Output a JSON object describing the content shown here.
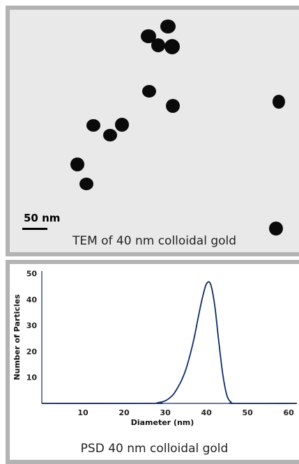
{
  "tem_panel": {
    "caption": "TEM of 40 nm colloidal gold",
    "scale_bar_label": "50 nm"
  },
  "psd_panel": {
    "caption": "PSD 40 nm colloidal gold"
  },
  "chart_data": {
    "type": "line",
    "title": "",
    "xlabel": "Diameter (nm)",
    "ylabel": "Number of Particles",
    "xlim": [
      0,
      62
    ],
    "ylim": [
      0,
      51
    ],
    "xticks": [
      10,
      20,
      30,
      40,
      50,
      60
    ],
    "yticks": [
      10,
      20,
      30,
      40,
      50
    ],
    "grid": false,
    "line_color": "#0d2a66",
    "series": [
      {
        "x": [
          0,
          27,
          28,
          29,
          30,
          31,
          32,
          33,
          34,
          35,
          36,
          37,
          38,
          39,
          40,
          41,
          42,
          43,
          44,
          45,
          46,
          47,
          62
        ],
        "y": [
          0,
          0,
          0.2,
          0.5,
          1,
          2,
          3.5,
          6,
          9,
          13,
          18.5,
          25,
          33,
          40.5,
          46,
          46,
          38,
          24,
          11,
          3,
          0.5,
          0,
          0
        ]
      }
    ]
  },
  "colors": {
    "panel_frame": "#b3b3b3",
    "tem_background": "#e9e9e9",
    "particle": "#0a0a0a"
  }
}
